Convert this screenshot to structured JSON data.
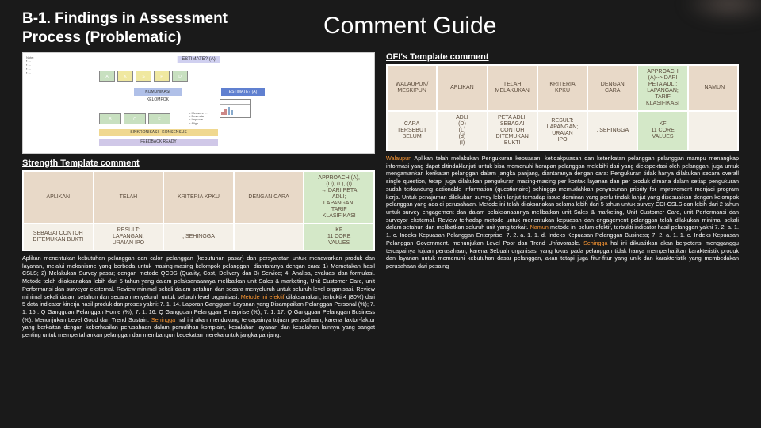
{
  "header": {
    "title_left_l1": "B-1. Findings in Assessment",
    "title_left_l2": "Process (Problematic)",
    "title_right": "Comment Guide"
  },
  "labels": {
    "ofi": "OFI's Template comment",
    "strength": "Strength Template comment"
  },
  "ofi_table": {
    "rows": [
      [
        {
          "t": "WALAUPUN/\nMESKIPUN",
          "bg": "#e8d9c8"
        },
        {
          "t": "APLIKAN",
          "bg": "#e8d9c8"
        },
        {
          "t": "TELAH\nMELAKUKAN",
          "bg": "#e8d9c8"
        },
        {
          "t": "KRITERIA\nKPKU",
          "bg": "#e8d9c8"
        },
        {
          "t": "DENGAN\nCARA",
          "bg": "#e8d9c8"
        },
        {
          "t": "APPROACH\n(A)--> DARI\nPETA ADLI;\nLAPANGAN;\nTARIF\nKLASIFIKASI",
          "bg": "#d4e8c8"
        },
        {
          "t": ", NAMUN",
          "bg": "#e8d9c8"
        }
      ],
      [
        {
          "t": "CARA\nTERSEBUT\nBELUM",
          "bg": "#f4f0e8"
        },
        {
          "t": "ADLI\n(D)\n(L)\n(d)\n(I)",
          "bg": "#f4f0e8"
        },
        {
          "t": "PETA ADLI:\nSEBAGAI\nCONTOH\nDITEMUKAN\nBUKTI",
          "bg": "#f4f0e8"
        },
        {
          "t": "RESULT:\nLAPANGAN;\nURAIAN\nIPO",
          "bg": "#f4f0e8"
        },
        {
          "t": ", SEHINGGA",
          "bg": "#f4f0e8"
        },
        {
          "t": "KF\n11 CORE\nVALUES",
          "bg": "#d4e8c8"
        },
        {
          "t": "",
          "bg": "#f4f0e8"
        }
      ]
    ]
  },
  "strength_table": {
    "rows": [
      [
        {
          "t": "APLIKAN",
          "bg": "#e8d9c8"
        },
        {
          "t": "TELAH",
          "bg": "#e8d9c8"
        },
        {
          "t": "KRITERIA KPKU",
          "bg": "#e8d9c8"
        },
        {
          "t": "DENGAN CARA",
          "bg": "#e8d9c8"
        },
        {
          "t": "APPROACH (A),\n(D), (L), (I)\n→ DARI PETA\nADLI;\nLAPANGAN;\nTARIF\nKLASIFIKASI",
          "bg": "#d4e8c8"
        }
      ],
      [
        {
          "t": "SEBAGAI CONTOH\nDITEMUKAN BUKTI",
          "bg": "#f4f0e8"
        },
        {
          "t": "RESULT:\nLAPANGAN;\nURAIAN IPO",
          "bg": "#f4f0e8"
        },
        {
          "t": ", SEHINGGA",
          "bg": "#f4f0e8"
        },
        {
          "t": "",
          "bg": "#f4f0e8"
        },
        {
          "t": "KF\n11 CORE\nVALUES",
          "bg": "#d4e8c8"
        }
      ]
    ]
  },
  "ofi_body": {
    "parts": [
      {
        "t": "Walaupun",
        "c": "hl"
      },
      {
        "t": " Aplikan telah melakukan Pengukuran kepuasan, ketidakpuasan dan keterikatan pelanggan pelanggan mampu menangkap informasi yang dapat  ditindaklanjuti untuk bisa memenuhi harapan pelanggan melebihi dari yang diekspektasi oleh pelanggan, juga untuk mengamankan kerikatan pelanggan dalam jangka panjang, diantaranya dengan cara: Pengukuran tidak hanya dilakukan secara overall single question, tetapi juga dilakukan pengukuran masing-masing per kontak layanan dan per produk dimana dalam setiap pengukuran sudah terkandung actionable information (questionaire) sehingga memudahkan penyusunan priority for improvement menjadi program kerja. Untuk penajaman dilakukan survey lebih lanjut terhadap issue dominan yang perlu tindak lanjut yang disesuaikan dengan kelompok pelanggan yang ada di perusahaan. Metode ini telah dilaksanakan selama lebih dari 5 tahun untuk survey CDI-CSLS dan lebih dari 2 tahun untuk survey engagement dan dalam pelaksanaannya melibatkan unit Sales & marketing, Unit Customer Care, unit Performansi dan surveyor eksternal. Review terhadap metode untuk menentukan kepuasan dan engagement pelanggan telah dilakukan minimal sekali dalam setahun dan melibatkan seluruh unit yang terkait. "
      },
      {
        "t": "Namun",
        "c": "hl"
      },
      {
        "t": " metode ini belum efektif, terbukti indicator hasil pelanggan yakni 7. 2. a. 1. 1. c.  Indeks Kepuasan Pelanggan Enterprise; 7. 2. a. 1. 1. d.  Indeks Kepuasan Pelanggan Business; 7. 2. a. 1. 1. e.  Indeks Kepuasan Pelanggan Government. menunjukan Level Poor dan Trend Unfavorable. "
      },
      {
        "t": "Sehingga",
        "c": "hl"
      },
      {
        "t": " hal ini dikuatirkan akan berpotensi mengganggu tercapainya tujuan perusahaan, karena Sebuah organisasi yang fokus pada pelanggan tidak hanya memperhatikan karakteristik produk dan layanan untuk memenuhi kebutuhan dasar pelanggan, akan tetapi juga fitur-fitur yang unik dan karakteristik yang membedakan perusahaan dari pesaing"
      }
    ]
  },
  "strength_body": {
    "parts": [
      {
        "t": "Aplikan menentukan kebutuhan pelanggan dan calon pelanggan (kebutuhan pasar) dan persyaratan untuk menawarkan produk dan layanan, melalui mekanisme yang berbeda untuk masing-masing kelompok pelanggan, diantaranya dengan cara: 1) Memetakan hasil CSLS; 2) Melakukan Survey pasar; dengan metode QCDS (Quality, Cost, Delivery dan 3) Service; 4. Analisa, evaluasi dan formulasi. Metode telah dilaksanakan lebih dari 5 tahun yang dalam pelaksanaannya melibatkan unit Sales & marketing, Unit Customer Care, unit Performansi dan surveyor eksternal. Review minimal sekali dalam setahun dan secara menyeluruh untuk seluruh level organisasi. Review minimal sekali dalam setahun dan secara menyeluruh untuk seluruh level organisasi. "
      },
      {
        "t": "Metode ini efektif",
        "c": "hl"
      },
      {
        "t": " dilaksanakan, terbukti 4 (80%) dari 5 data indicator kinerja hasil produk dan proses yakni: 7. 1. 14. Laporan Gangguan Layanan yang Disampaikan Pelanggan Personal (%); 7. 1. 15 . Q Gangguan Pelanggan Home (%); 7. 1. 16. Q Gangguan Pelanggan Enterprise (%); 7. 1. 17. Q Gangguan Pelanggan Business (%). Menunjukan Level Good dan Trend Sustain. "
      },
      {
        "t": "Sehingga",
        "c": "hl"
      },
      {
        "t": " hal ini akan mendukung tercapainya tujuan perusahaan, karena faktor-faktor yang berkaitan dengan keberhasilan perusahaan dalam pemulihan komplain, kesalahan layanan dan kesalahan lainnya yang sangat penting untuk mempertahankan pelanggan dan membangun kedekatan mereka untuk jangka panjang."
      }
    ]
  },
  "colors": {
    "bg": "#1a1a1a",
    "accent": "#ff9933",
    "cell_tan": "#e8d9c8",
    "cell_cream": "#f4f0e8",
    "cell_green": "#d4e8c8"
  }
}
